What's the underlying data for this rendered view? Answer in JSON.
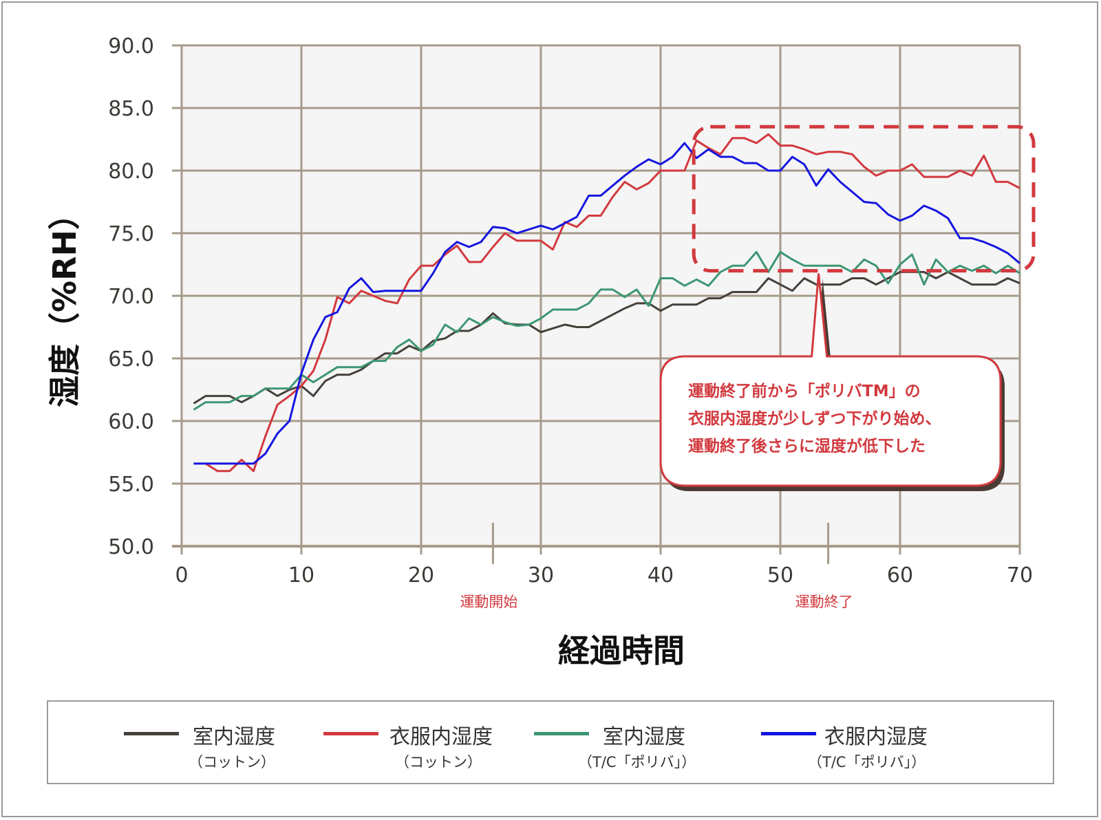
{
  "chart_data": {
    "type": "line",
    "xlabel": "経過時間",
    "ylabel": "湿度（%RH）",
    "xlim": [
      0,
      70
    ],
    "ylim": [
      50,
      90
    ],
    "xticks": [
      "0",
      "10",
      "20",
      "30",
      "40",
      "50",
      "60",
      "70"
    ],
    "yticks": [
      "50.0",
      "55.0",
      "60.0",
      "65.0",
      "70.0",
      "75.0",
      "80.0",
      "85.0",
      "90.0"
    ],
    "grid": true,
    "markers": [
      {
        "x": 26,
        "label": "運動開始"
      },
      {
        "x": 54,
        "label": "運動終了"
      }
    ],
    "callout": {
      "lines": [
        "運動終了前から「ポリバTM」の",
        "衣服内湿度が少しずつ下がり始め、",
        "運動終了後さらに湿度が低下した"
      ],
      "highlight_x": [
        43,
        70
      ],
      "highlight_y": [
        72,
        83.5
      ]
    },
    "series": [
      {
        "name": "室内湿度（コットン）",
        "color": "#45403a",
        "points": [
          [
            1,
            61.4
          ],
          [
            2,
            62
          ],
          [
            3,
            62
          ],
          [
            4,
            62
          ],
          [
            5,
            61.5
          ],
          [
            6,
            62
          ],
          [
            7,
            62.6
          ],
          [
            8,
            62
          ],
          [
            9,
            62.5
          ],
          [
            10,
            62.8
          ],
          [
            11,
            62
          ],
          [
            12,
            63.2
          ],
          [
            13,
            63.7
          ],
          [
            14,
            63.7
          ],
          [
            15,
            64.1
          ],
          [
            16,
            64.8
          ],
          [
            17,
            65.4
          ],
          [
            18,
            65.4
          ],
          [
            19,
            66
          ],
          [
            20,
            65.6
          ],
          [
            21,
            66.4
          ],
          [
            22,
            66.6
          ],
          [
            23,
            67.2
          ],
          [
            24,
            67.2
          ],
          [
            25,
            67.7
          ],
          [
            26,
            68.6
          ],
          [
            27,
            67.8
          ],
          [
            28,
            67.7
          ],
          [
            29,
            67.7
          ],
          [
            30,
            67.1
          ],
          [
            31,
            67.4
          ],
          [
            32,
            67.7
          ],
          [
            33,
            67.5
          ],
          [
            34,
            67.5
          ],
          [
            35,
            68
          ],
          [
            36,
            68.5
          ],
          [
            37,
            69
          ],
          [
            38,
            69.4
          ],
          [
            39,
            69.4
          ],
          [
            40,
            68.8
          ],
          [
            41,
            69.3
          ],
          [
            42,
            69.3
          ],
          [
            43,
            69.3
          ],
          [
            44,
            69.8
          ],
          [
            45,
            69.8
          ],
          [
            46,
            70.3
          ],
          [
            47,
            70.3
          ],
          [
            48,
            70.3
          ],
          [
            49,
            71.4
          ],
          [
            50,
            70.9
          ],
          [
            51,
            70.4
          ],
          [
            52,
            71.4
          ],
          [
            53,
            70.9
          ],
          [
            54,
            70.9
          ],
          [
            55,
            70.9
          ],
          [
            56,
            71.4
          ],
          [
            57,
            71.4
          ],
          [
            58,
            70.9
          ],
          [
            59,
            71.4
          ],
          [
            60,
            71.9
          ],
          [
            61,
            71.9
          ],
          [
            62,
            71.9
          ],
          [
            63,
            71.4
          ],
          [
            64,
            71.9
          ],
          [
            65,
            71.4
          ],
          [
            66,
            70.9
          ],
          [
            67,
            70.9
          ],
          [
            68,
            70.9
          ],
          [
            69,
            71.4
          ],
          [
            70,
            71
          ]
        ]
      },
      {
        "name": "衣服内湿度（コットン）",
        "color": "#d2393e",
        "points": [
          [
            2,
            56.6
          ],
          [
            3,
            56
          ],
          [
            4,
            56
          ],
          [
            5,
            56.9
          ],
          [
            6,
            56
          ],
          [
            7,
            58.8
          ],
          [
            8,
            61.3
          ],
          [
            9,
            62
          ],
          [
            10,
            62.8
          ],
          [
            11,
            64
          ],
          [
            12,
            66.5
          ],
          [
            13,
            69.9
          ],
          [
            14,
            69.4
          ],
          [
            15,
            70.4
          ],
          [
            16,
            70
          ],
          [
            17,
            69.6
          ],
          [
            18,
            69.4
          ],
          [
            19,
            71.3
          ],
          [
            20,
            72.4
          ],
          [
            21,
            72.4
          ],
          [
            22,
            73.3
          ],
          [
            23,
            74
          ],
          [
            24,
            72.7
          ],
          [
            25,
            72.7
          ],
          [
            26,
            73.9
          ],
          [
            27,
            75
          ],
          [
            28,
            74.4
          ],
          [
            29,
            74.4
          ],
          [
            30,
            74.4
          ],
          [
            31,
            73.7
          ],
          [
            32,
            75.9
          ],
          [
            33,
            75.5
          ],
          [
            34,
            76.4
          ],
          [
            35,
            76.4
          ],
          [
            36,
            77.9
          ],
          [
            37,
            79.1
          ],
          [
            38,
            78.5
          ],
          [
            39,
            79
          ],
          [
            40,
            80
          ],
          [
            41,
            80
          ],
          [
            42,
            80
          ],
          [
            43,
            82.4
          ],
          [
            44,
            81.8
          ],
          [
            45,
            81.3
          ],
          [
            46,
            82.6
          ],
          [
            47,
            82.6
          ],
          [
            48,
            82.2
          ],
          [
            49,
            82.9
          ],
          [
            50,
            82
          ],
          [
            51,
            82
          ],
          [
            52,
            81.7
          ],
          [
            53,
            81.3
          ],
          [
            54,
            81.5
          ],
          [
            55,
            81.5
          ],
          [
            56,
            81.3
          ],
          [
            57,
            80.3
          ],
          [
            58,
            79.6
          ],
          [
            59,
            80
          ],
          [
            60,
            80
          ],
          [
            61,
            80.5
          ],
          [
            62,
            79.5
          ],
          [
            63,
            79.5
          ],
          [
            64,
            79.5
          ],
          [
            65,
            80
          ],
          [
            66,
            79.6
          ],
          [
            67,
            81.2
          ],
          [
            68,
            79.1
          ],
          [
            69,
            79.1
          ],
          [
            70,
            78.6
          ]
        ]
      },
      {
        "name": "室内湿度（T/C「ポリバ」）",
        "color": "#3c9672",
        "points": [
          [
            1,
            60.9
          ],
          [
            2,
            61.5
          ],
          [
            3,
            61.5
          ],
          [
            4,
            61.5
          ],
          [
            5,
            62
          ],
          [
            6,
            62
          ],
          [
            7,
            62.6
          ],
          [
            8,
            62.6
          ],
          [
            9,
            62.6
          ],
          [
            10,
            63.7
          ],
          [
            11,
            63.1
          ],
          [
            12,
            63.7
          ],
          [
            13,
            64.3
          ],
          [
            14,
            64.3
          ],
          [
            15,
            64.3
          ],
          [
            16,
            64.8
          ],
          [
            17,
            64.8
          ],
          [
            18,
            65.9
          ],
          [
            19,
            66.5
          ],
          [
            20,
            65.6
          ],
          [
            21,
            66.1
          ],
          [
            22,
            67.7
          ],
          [
            23,
            67.1
          ],
          [
            24,
            68.2
          ],
          [
            25,
            67.7
          ],
          [
            26,
            68.3
          ],
          [
            27,
            67.9
          ],
          [
            28,
            67.6
          ],
          [
            29,
            67.7
          ],
          [
            30,
            68.2
          ],
          [
            31,
            68.9
          ],
          [
            32,
            68.9
          ],
          [
            33,
            68.9
          ],
          [
            34,
            69.4
          ],
          [
            35,
            70.5
          ],
          [
            36,
            70.5
          ],
          [
            37,
            69.9
          ],
          [
            38,
            70.5
          ],
          [
            39,
            69.2
          ],
          [
            40,
            71.4
          ],
          [
            41,
            71.4
          ],
          [
            42,
            70.8
          ],
          [
            43,
            71.3
          ],
          [
            44,
            70.8
          ],
          [
            45,
            71.9
          ],
          [
            46,
            72.4
          ],
          [
            47,
            72.4
          ],
          [
            48,
            73.5
          ],
          [
            49,
            71.9
          ],
          [
            50,
            73.5
          ],
          [
            51,
            72.9
          ],
          [
            52,
            72.4
          ],
          [
            53,
            72.4
          ],
          [
            54,
            72.4
          ],
          [
            55,
            72.4
          ],
          [
            56,
            71.9
          ],
          [
            57,
            72.9
          ],
          [
            58,
            72.4
          ],
          [
            59,
            71
          ],
          [
            60,
            72.5
          ],
          [
            61,
            73.3
          ],
          [
            62,
            70.9
          ],
          [
            63,
            72.9
          ],
          [
            64,
            71.9
          ],
          [
            65,
            72.4
          ],
          [
            66,
            72
          ],
          [
            67,
            72.4
          ],
          [
            68,
            71.8
          ],
          [
            69,
            72.4
          ],
          [
            70,
            71.8
          ]
        ]
      },
      {
        "name": "衣服内湿度（T/C「ポリバ」）",
        "color": "#1515e0",
        "points": [
          [
            1,
            56.6
          ],
          [
            2,
            56.6
          ],
          [
            3,
            56.6
          ],
          [
            4,
            56.6
          ],
          [
            5,
            56.6
          ],
          [
            6,
            56.6
          ],
          [
            7,
            57.4
          ],
          [
            8,
            59
          ],
          [
            9,
            60
          ],
          [
            10,
            63.8
          ],
          [
            11,
            66.5
          ],
          [
            12,
            68.3
          ],
          [
            13,
            68.7
          ],
          [
            14,
            70.6
          ],
          [
            15,
            71.4
          ],
          [
            16,
            70.3
          ],
          [
            17,
            70.4
          ],
          [
            18,
            70.4
          ],
          [
            19,
            70.4
          ],
          [
            20,
            70.4
          ],
          [
            21,
            71.8
          ],
          [
            22,
            73.5
          ],
          [
            23,
            74.3
          ],
          [
            24,
            73.9
          ],
          [
            25,
            74.3
          ],
          [
            26,
            75.5
          ],
          [
            27,
            75.4
          ],
          [
            28,
            75
          ],
          [
            29,
            75.3
          ],
          [
            30,
            75.6
          ],
          [
            31,
            75.3
          ],
          [
            32,
            75.8
          ],
          [
            33,
            76.3
          ],
          [
            34,
            78
          ],
          [
            35,
            78
          ],
          [
            36,
            78.8
          ],
          [
            37,
            79.6
          ],
          [
            38,
            80.3
          ],
          [
            39,
            80.9
          ],
          [
            40,
            80.5
          ],
          [
            41,
            81.1
          ],
          [
            42,
            82.2
          ],
          [
            43,
            81
          ],
          [
            44,
            81.7
          ],
          [
            45,
            81.1
          ],
          [
            46,
            81.1
          ],
          [
            47,
            80.6
          ],
          [
            48,
            80.6
          ],
          [
            49,
            80
          ],
          [
            50,
            80
          ],
          [
            51,
            81.1
          ],
          [
            52,
            80.5
          ],
          [
            53,
            78.8
          ],
          [
            54,
            80.1
          ],
          [
            55,
            79.1
          ],
          [
            56,
            78.3
          ],
          [
            57,
            77.5
          ],
          [
            58,
            77.4
          ],
          [
            59,
            76.5
          ],
          [
            60,
            76
          ],
          [
            61,
            76.4
          ],
          [
            62,
            77.2
          ],
          [
            63,
            76.8
          ],
          [
            64,
            76.2
          ],
          [
            65,
            74.6
          ],
          [
            66,
            74.6
          ],
          [
            67,
            74.3
          ],
          [
            68,
            73.9
          ],
          [
            69,
            73.4
          ],
          [
            70,
            72.6
          ]
        ]
      }
    ]
  },
  "legend": [
    {
      "name": "室内湿度",
      "sub": "（コットン）",
      "color": "#45403a"
    },
    {
      "name": "衣服内湿度",
      "sub": "（コットン）",
      "color": "#d2393e"
    },
    {
      "name": "室内湿度",
      "sub": "（T/C「ポリバ」）",
      "color": "#3c9672"
    },
    {
      "name": "衣服内湿度",
      "sub": "（T/C「ポリバ」）",
      "color": "#1515e0"
    }
  ]
}
